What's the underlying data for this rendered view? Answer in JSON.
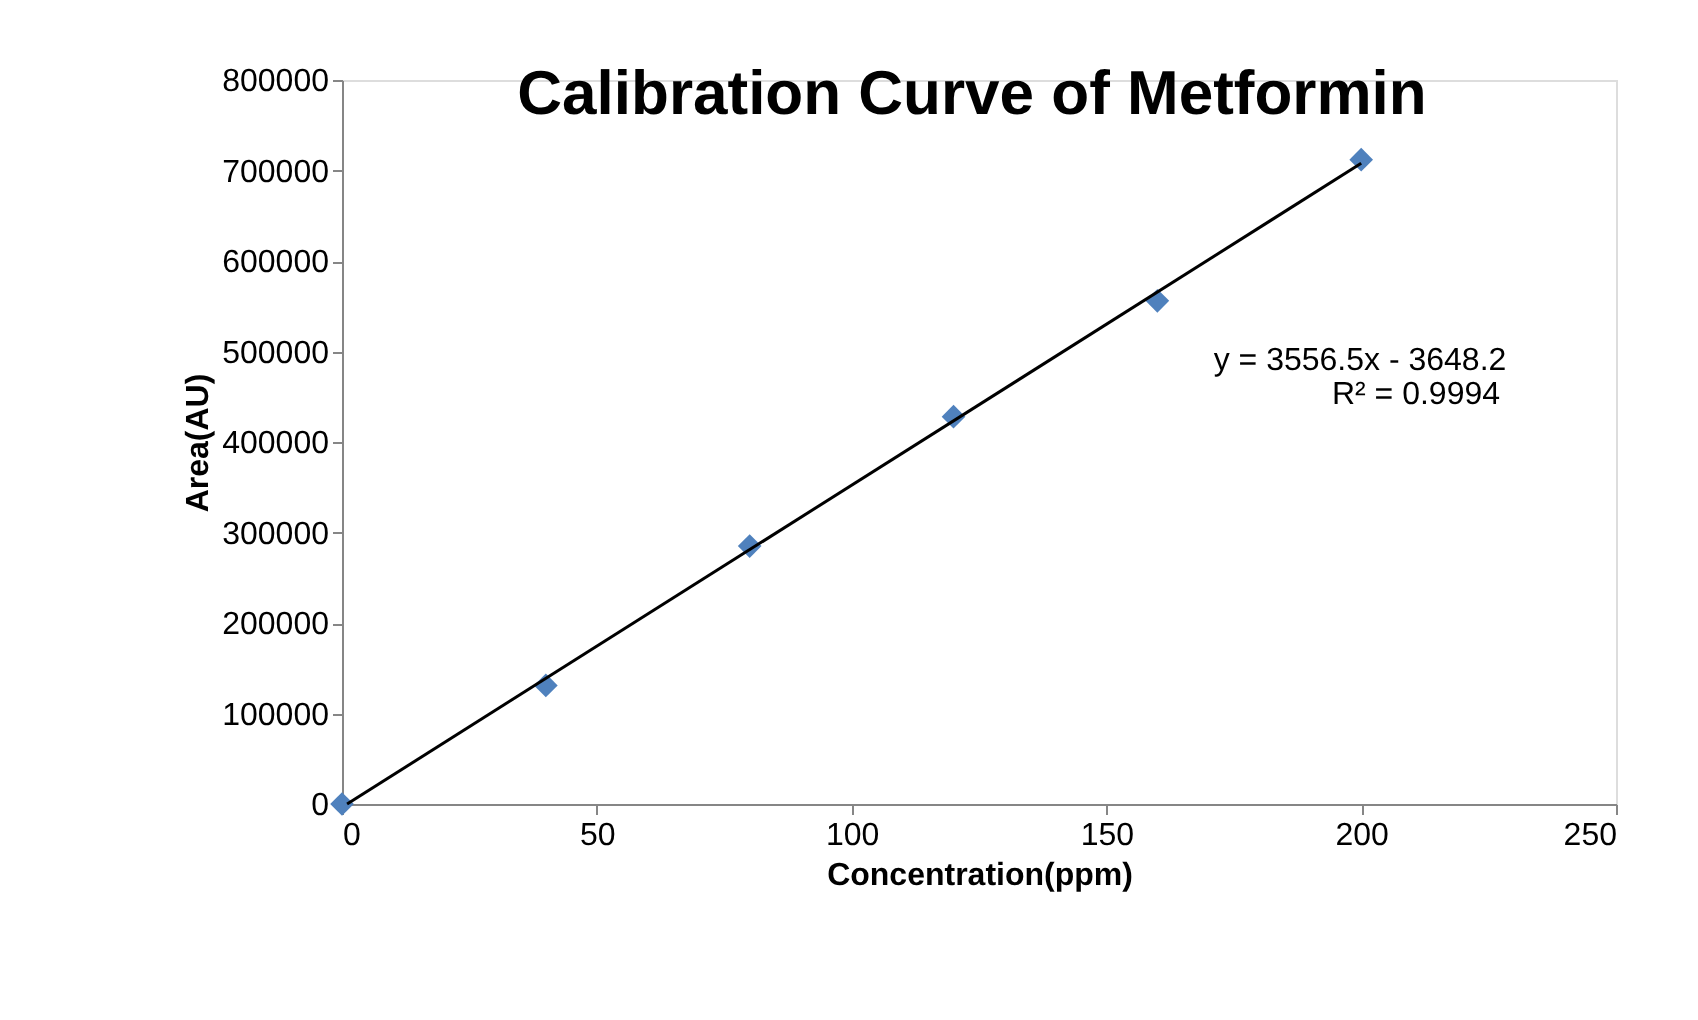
{
  "chart_data": {
    "type": "scatter",
    "title": "Calibration Curve of Metformin",
    "xlabel": "Concentration(ppm)",
    "ylabel": "Area(AU)",
    "annotations": [
      "y = 3556.5x - 3648.2",
      "R² = 0.9994"
    ],
    "xlim": [
      0,
      250
    ],
    "xticks": [
      0,
      50,
      100,
      150,
      200,
      250
    ],
    "ylim": [
      0,
      800000
    ],
    "yticks": [
      0,
      100000,
      200000,
      300000,
      400000,
      500000,
      600000,
      700000,
      800000
    ],
    "grid": false,
    "marker": "diamond",
    "series": [
      {
        "color": "#4f81bd",
        "x": [
          0,
          40,
          80,
          120,
          160,
          200
        ],
        "values": [
          0,
          131000,
          285000,
          428000,
          556000,
          712000
        ]
      },
      {
        "type": "line",
        "color": "#000000",
        "line_style": "solid",
        "marker": "none",
        "x": [
          1,
          200
        ],
        "values": [
          0,
          708000
        ]
      }
    ]
  }
}
